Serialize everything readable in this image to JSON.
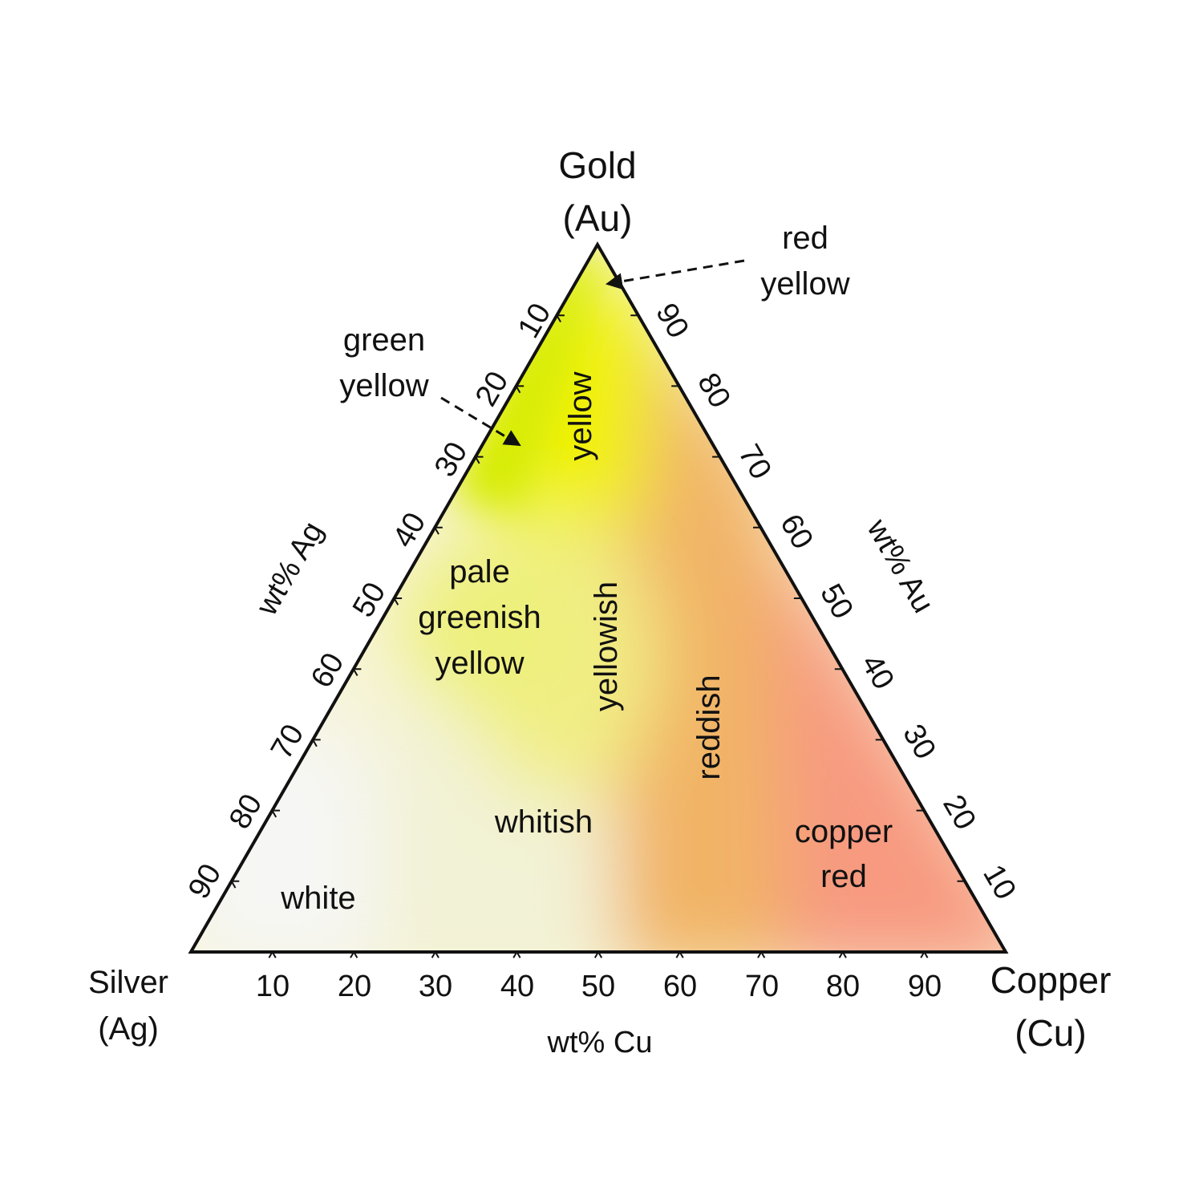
{
  "vertices": {
    "top": {
      "name": "Gold",
      "symbol": "(Au)"
    },
    "left": {
      "name": "Silver",
      "symbol": "(Ag)"
    },
    "right": {
      "name": "Copper",
      "symbol": "(Cu)"
    }
  },
  "axes": {
    "cu": {
      "title": "wt% Cu",
      "ticks": [
        "10",
        "20",
        "30",
        "40",
        "50",
        "60",
        "70",
        "80",
        "90"
      ]
    },
    "ag": {
      "title": "wt% Ag",
      "ticks": [
        "10",
        "20",
        "30",
        "40",
        "50",
        "60",
        "70",
        "80",
        "90"
      ]
    },
    "au": {
      "title": "wt% Au",
      "ticks": [
        "90",
        "80",
        "70",
        "60",
        "50",
        "40",
        "30",
        "20",
        "10"
      ]
    }
  },
  "regions": {
    "yellow": "yellow",
    "pale_greenish_yellow": [
      "pale",
      "greenish",
      "yellow"
    ],
    "yellowish": "yellowish",
    "reddish": "reddish",
    "whitish": "whitish",
    "white": "white",
    "copper_red": [
      "copper",
      "red"
    ]
  },
  "callouts": {
    "red_yellow": [
      "red",
      "yellow"
    ],
    "green_yellow": [
      "green",
      "yellow"
    ]
  },
  "colors": {
    "outline": "#111111",
    "yellow": "#f2f200",
    "green_yellow": "#d2ea00",
    "pale_greenish_yellow": "#eef07a",
    "yellowish": "#f2ee8a",
    "orange": "#f2b060",
    "copper_red": "#f79a80",
    "whitish": "#f2f3d8",
    "white": "#f5f5f5"
  }
}
